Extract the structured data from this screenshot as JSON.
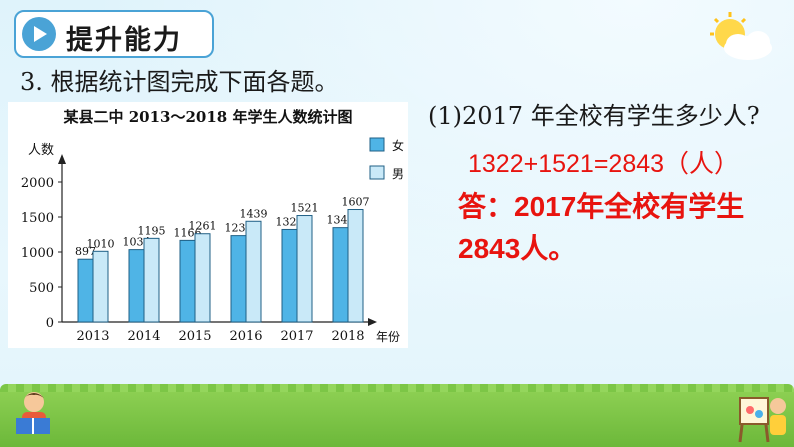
{
  "header": {
    "section_title": "提升能力",
    "question": "3. 根据统计图完成下面各题。"
  },
  "subquestion": "(1)2017 年全校有学生多少人?",
  "answer": {
    "equation": "1322+1521=2843（人）",
    "line1": "答：2017年全校有学生",
    "line2": "2843人。"
  },
  "colors": {
    "bar_female": "#4fb4e6",
    "bar_male": "#c9e9f8",
    "accent": "#4aa3d6",
    "answer_red": "#e8140f"
  },
  "icons": [
    "play-icon",
    "sun-cloud-icon",
    "reading-child-icon",
    "painting-child-icon"
  ],
  "chart_data": {
    "type": "bar",
    "title": "某县二中 2013～2018 年学生人数统计图",
    "ylabel": "人数",
    "xlabel": "年份",
    "categories": [
      "2013",
      "2014",
      "2015",
      "2016",
      "2017",
      "2018"
    ],
    "series": [
      {
        "name": "女",
        "values": [
          897,
          1034,
          1166,
          1234,
          1322,
          1348
        ]
      },
      {
        "name": "男",
        "values": [
          1010,
          1195,
          1261,
          1439,
          1521,
          1607
        ]
      }
    ],
    "ylim": [
      0,
      2000
    ],
    "yticks": [
      "0",
      "500",
      "1000",
      "1500",
      "2000"
    ],
    "legend": "top-right",
    "grid": false
  }
}
